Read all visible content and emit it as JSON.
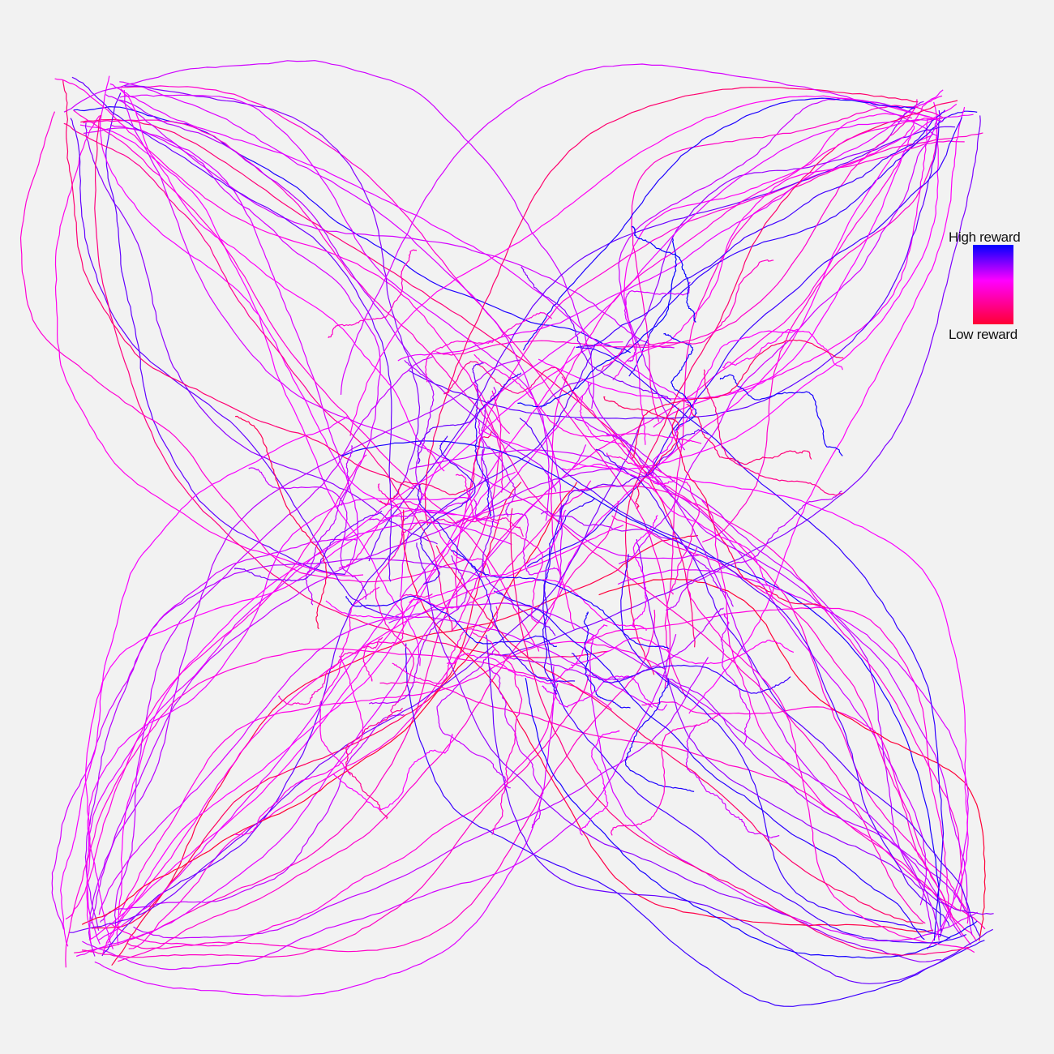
{
  "chart_data": {
    "type": "line",
    "title": "",
    "xlabel": "",
    "ylabel": "",
    "axes_visible": false,
    "grid": false,
    "background": "#f2f2f2",
    "colormap": {
      "high_label": "High reward",
      "low_label": "Low reward",
      "high_color": "#0000ff",
      "mid_color": "#ff00ff",
      "low_color": "#ff0033",
      "position": "right"
    },
    "description_of_series": "Many trajectories radiating from the center toward the four corners; color encodes reward from low (red) to high (blue).",
    "series_groups": [
      {
        "direction": "top-left",
        "count": 28
      },
      {
        "direction": "top-right",
        "count": 30
      },
      {
        "direction": "bottom-left",
        "count": 34
      },
      {
        "direction": "bottom-right",
        "count": 34
      },
      {
        "direction": "center",
        "count": 70
      }
    ]
  }
}
